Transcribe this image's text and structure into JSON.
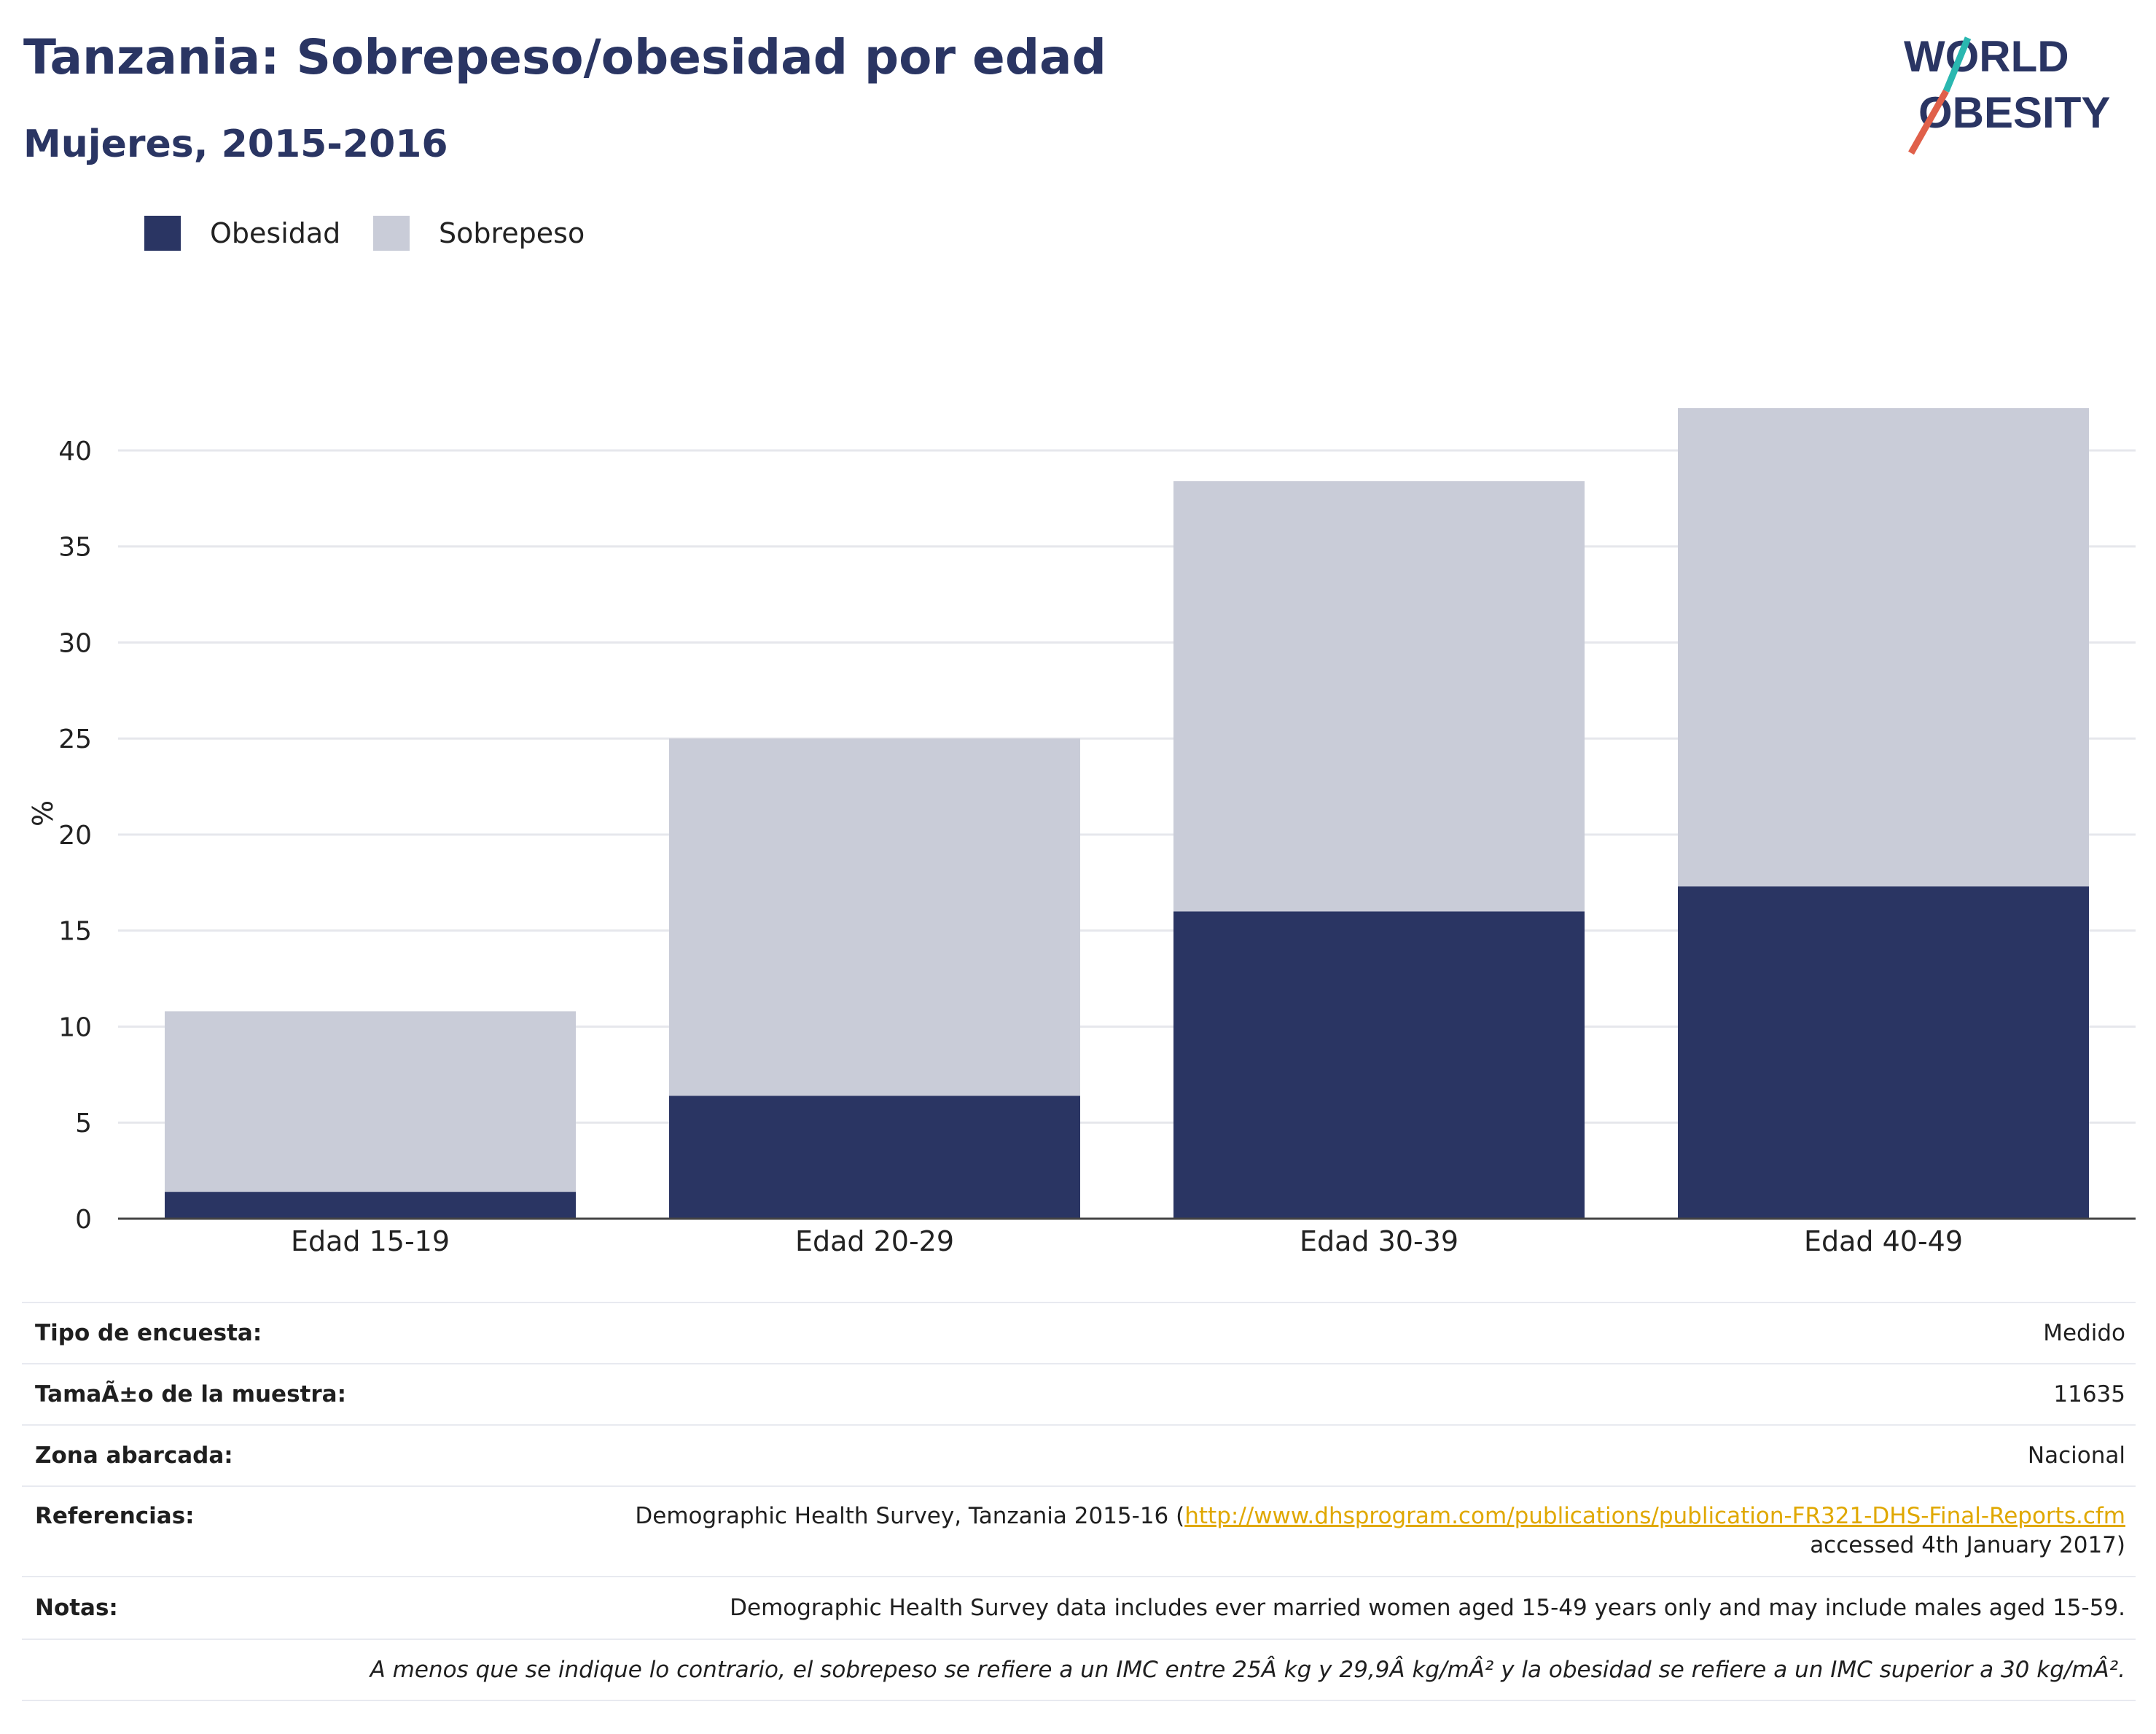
{
  "header": {
    "title": "Tanzania: Sobrepeso/obesidad por edad",
    "subtitle": "Mujeres, 2015-2016"
  },
  "logo": {
    "line1": "WORLD",
    "line2": "OBESITY",
    "colors": {
      "text": "#2a3563",
      "slash_top": "#2ab7b0",
      "slash_bottom": "#e0604a"
    }
  },
  "colors": {
    "obesidad": "#2a3563",
    "sobrepeso": "#c9ccd8",
    "grid": "#e6e7ec",
    "axis": "#444444"
  },
  "legend": [
    {
      "label": "Obesidad",
      "color": "#2a3563"
    },
    {
      "label": "Sobrepeso",
      "color": "#c9ccd8"
    }
  ],
  "chart_data": {
    "type": "bar",
    "stacked": true,
    "categories": [
      "Edad 15-19",
      "Edad 20-29",
      "Edad 30-39",
      "Edad 40-49"
    ],
    "series": [
      {
        "name": "Obesidad",
        "values": [
          1.4,
          6.4,
          16.0,
          17.3
        ]
      },
      {
        "name": "Sobrepeso",
        "values": [
          9.4,
          18.6,
          22.4,
          24.9
        ]
      }
    ],
    "ylabel": "%",
    "ylim": [
      0,
      42.2
    ],
    "yticks": [
      0,
      5,
      10,
      15,
      20,
      25,
      30,
      35,
      40
    ],
    "grid": true,
    "legend_position": "top-left"
  },
  "info": {
    "rows": [
      {
        "key": "Tipo de encuesta:",
        "value": "Medido"
      },
      {
        "key": "TamaÃ±o de la muestra:",
        "value": "11635"
      },
      {
        "key": "Zona abarcada:",
        "value": "Nacional"
      },
      {
        "key": "Referencias:",
        "value_prefix": "Demographic Health Survey, Tanzania 2015-16 (",
        "link": "http://www.dhsprogram.com/publications/publication-FR321-DHS-Final-Reports.cfm",
        "value_suffix": "accessed 4th January 2017)"
      },
      {
        "key": "Notas:",
        "value": "Demographic Health Survey data includes ever married women aged 15-49 years only and may include males aged 15-59."
      }
    ],
    "footnote": "A menos que se indique lo contrario, el sobrepeso se refiere a un IMC entre 25Â kg y 29,9Â kg/mÂ² y la obesidad se refiere a un IMC superior a 30 kg/mÂ²."
  }
}
